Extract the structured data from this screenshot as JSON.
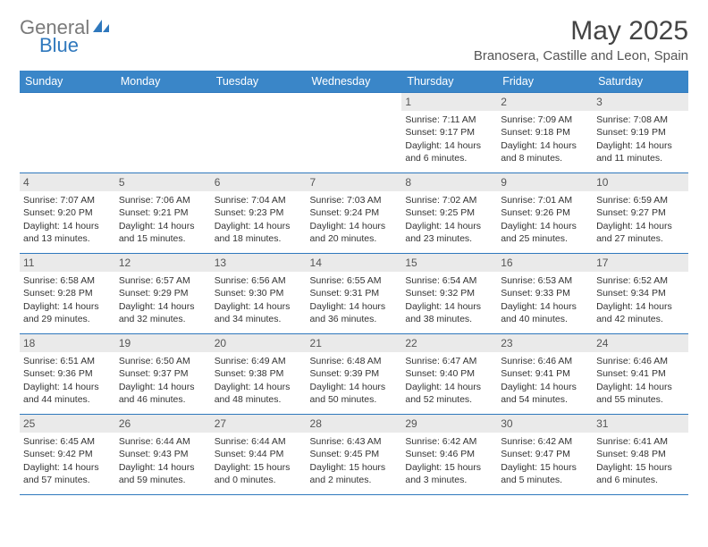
{
  "logo": {
    "word1": "General",
    "word2": "Blue"
  },
  "title": {
    "month": "May 2025",
    "location": "Branosera, Castille and Leon, Spain"
  },
  "colors": {
    "accent": "#3a86c8",
    "rule": "#2f78bd",
    "dayBg": "#eaeaea",
    "logoGray": "#7a7a7a"
  },
  "weekdays": [
    "Sunday",
    "Monday",
    "Tuesday",
    "Wednesday",
    "Thursday",
    "Friday",
    "Saturday"
  ],
  "startOffset": 4,
  "days": [
    {
      "n": 1,
      "sr": "7:11 AM",
      "ss": "9:17 PM",
      "dl": "14 hours and 6 minutes."
    },
    {
      "n": 2,
      "sr": "7:09 AM",
      "ss": "9:18 PM",
      "dl": "14 hours and 8 minutes."
    },
    {
      "n": 3,
      "sr": "7:08 AM",
      "ss": "9:19 PM",
      "dl": "14 hours and 11 minutes."
    },
    {
      "n": 4,
      "sr": "7:07 AM",
      "ss": "9:20 PM",
      "dl": "14 hours and 13 minutes."
    },
    {
      "n": 5,
      "sr": "7:06 AM",
      "ss": "9:21 PM",
      "dl": "14 hours and 15 minutes."
    },
    {
      "n": 6,
      "sr": "7:04 AM",
      "ss": "9:23 PM",
      "dl": "14 hours and 18 minutes."
    },
    {
      "n": 7,
      "sr": "7:03 AM",
      "ss": "9:24 PM",
      "dl": "14 hours and 20 minutes."
    },
    {
      "n": 8,
      "sr": "7:02 AM",
      "ss": "9:25 PM",
      "dl": "14 hours and 23 minutes."
    },
    {
      "n": 9,
      "sr": "7:01 AM",
      "ss": "9:26 PM",
      "dl": "14 hours and 25 minutes."
    },
    {
      "n": 10,
      "sr": "6:59 AM",
      "ss": "9:27 PM",
      "dl": "14 hours and 27 minutes."
    },
    {
      "n": 11,
      "sr": "6:58 AM",
      "ss": "9:28 PM",
      "dl": "14 hours and 29 minutes."
    },
    {
      "n": 12,
      "sr": "6:57 AM",
      "ss": "9:29 PM",
      "dl": "14 hours and 32 minutes."
    },
    {
      "n": 13,
      "sr": "6:56 AM",
      "ss": "9:30 PM",
      "dl": "14 hours and 34 minutes."
    },
    {
      "n": 14,
      "sr": "6:55 AM",
      "ss": "9:31 PM",
      "dl": "14 hours and 36 minutes."
    },
    {
      "n": 15,
      "sr": "6:54 AM",
      "ss": "9:32 PM",
      "dl": "14 hours and 38 minutes."
    },
    {
      "n": 16,
      "sr": "6:53 AM",
      "ss": "9:33 PM",
      "dl": "14 hours and 40 minutes."
    },
    {
      "n": 17,
      "sr": "6:52 AM",
      "ss": "9:34 PM",
      "dl": "14 hours and 42 minutes."
    },
    {
      "n": 18,
      "sr": "6:51 AM",
      "ss": "9:36 PM",
      "dl": "14 hours and 44 minutes."
    },
    {
      "n": 19,
      "sr": "6:50 AM",
      "ss": "9:37 PM",
      "dl": "14 hours and 46 minutes."
    },
    {
      "n": 20,
      "sr": "6:49 AM",
      "ss": "9:38 PM",
      "dl": "14 hours and 48 minutes."
    },
    {
      "n": 21,
      "sr": "6:48 AM",
      "ss": "9:39 PM",
      "dl": "14 hours and 50 minutes."
    },
    {
      "n": 22,
      "sr": "6:47 AM",
      "ss": "9:40 PM",
      "dl": "14 hours and 52 minutes."
    },
    {
      "n": 23,
      "sr": "6:46 AM",
      "ss": "9:41 PM",
      "dl": "14 hours and 54 minutes."
    },
    {
      "n": 24,
      "sr": "6:46 AM",
      "ss": "9:41 PM",
      "dl": "14 hours and 55 minutes."
    },
    {
      "n": 25,
      "sr": "6:45 AM",
      "ss": "9:42 PM",
      "dl": "14 hours and 57 minutes."
    },
    {
      "n": 26,
      "sr": "6:44 AM",
      "ss": "9:43 PM",
      "dl": "14 hours and 59 minutes."
    },
    {
      "n": 27,
      "sr": "6:44 AM",
      "ss": "9:44 PM",
      "dl": "15 hours and 0 minutes."
    },
    {
      "n": 28,
      "sr": "6:43 AM",
      "ss": "9:45 PM",
      "dl": "15 hours and 2 minutes."
    },
    {
      "n": 29,
      "sr": "6:42 AM",
      "ss": "9:46 PM",
      "dl": "15 hours and 3 minutes."
    },
    {
      "n": 30,
      "sr": "6:42 AM",
      "ss": "9:47 PM",
      "dl": "15 hours and 5 minutes."
    },
    {
      "n": 31,
      "sr": "6:41 AM",
      "ss": "9:48 PM",
      "dl": "15 hours and 6 minutes."
    }
  ],
  "labels": {
    "sunrise": "Sunrise: ",
    "sunset": "Sunset: ",
    "daylight": "Daylight: "
  }
}
